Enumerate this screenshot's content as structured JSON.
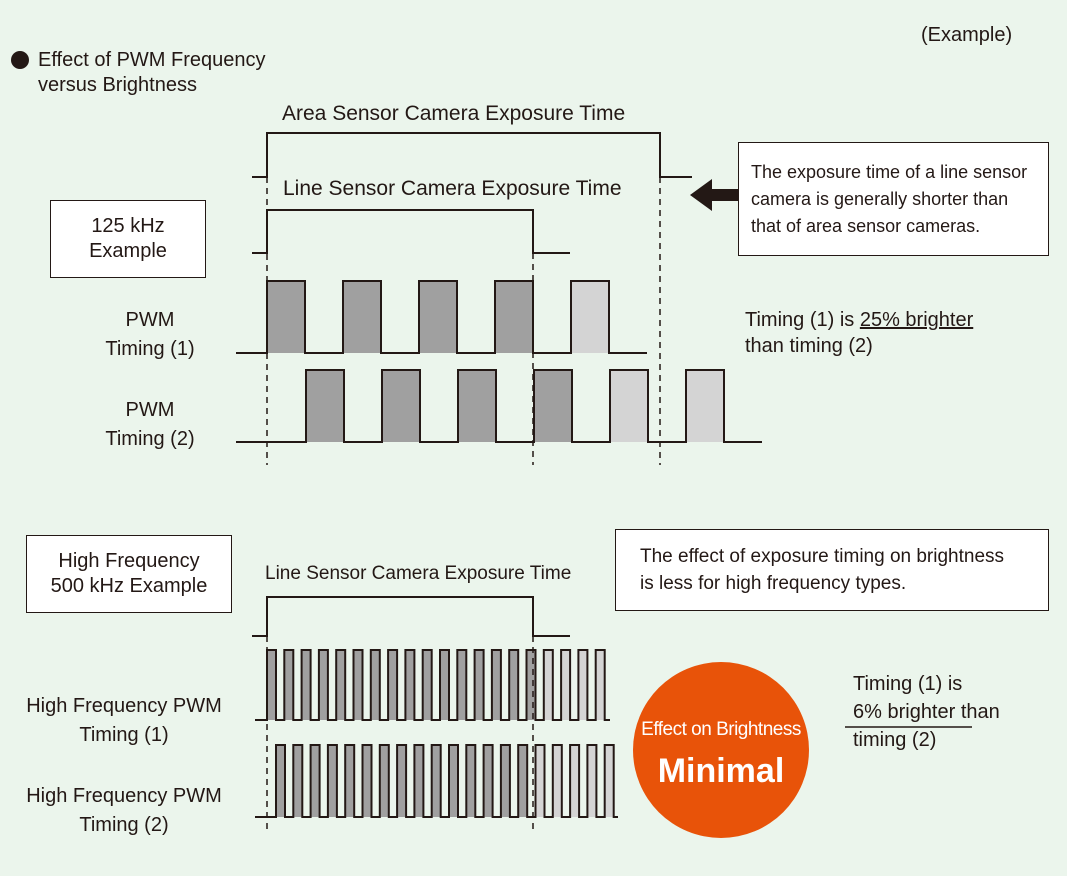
{
  "example_label": "(Example)",
  "title": {
    "line1": "Effect of PWM Frequency",
    "line2": "versus Brightness",
    "bullet-icon": "filled-circle"
  },
  "low_freq": {
    "box": {
      "line1": "125 kHz",
      "line2": "Example"
    },
    "area_exposure_label": "Area Sensor Camera Exposure Time",
    "line_exposure_label": "Line Sensor Camera Exposure Time",
    "callout": {
      "line1": "The exposure time of a line sensor",
      "line2": "camera is generally shorter than",
      "line3": "that of area sensor cameras."
    },
    "timing1_label": {
      "line1": "PWM",
      "line2": "Timing (1)"
    },
    "timing2_label": {
      "line1": "PWM",
      "line2": "Timing (2)"
    },
    "result": {
      "prefix": "Timing (1) is",
      "highlight": "25% brighter",
      "suffix": "than timing (2)"
    }
  },
  "high_freq": {
    "box": {
      "line1": "High Frequency",
      "line2": "500 kHz Example"
    },
    "line_exposure_label": "Line Sensor Camera Exposure Time",
    "callout": {
      "line1": "The effect of exposure timing on brightness",
      "line2": "is less for high frequency types."
    },
    "timing1_label": {
      "line1": "High Frequency PWM",
      "line2": "Timing (1)"
    },
    "timing2_label": {
      "line1": "High Frequency PWM",
      "line2": "Timing (2)"
    },
    "badge": {
      "line1": "Effect on Brightness",
      "line2": "Minimal"
    },
    "result": {
      "line1": "Timing (1) is",
      "line2": "6% brighter than",
      "line3": "timing (2)"
    }
  },
  "colors": {
    "background": "#ebf5ec",
    "pulse_in_exposure": "#a0a0a0",
    "pulse_outside": "#d4d4d4",
    "badge": "#e85309",
    "line": "#231815"
  }
}
